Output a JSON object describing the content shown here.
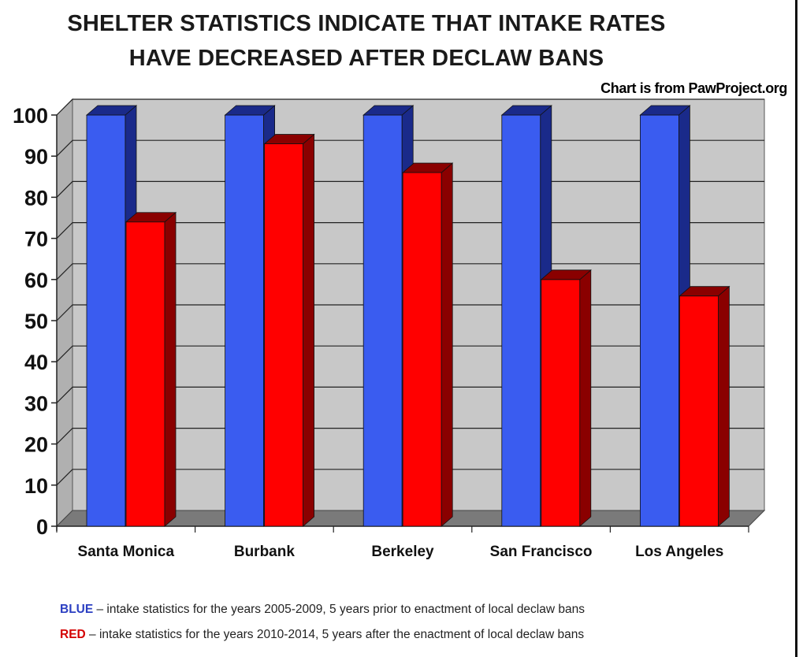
{
  "title_line1": "SHELTER STATISTICS INDICATE THAT INTAKE RATES",
  "title_line2": "HAVE DECREASED AFTER DECLAW BANS",
  "credit": "Chart is from PawProject.org",
  "legend": {
    "blue_key": "BLUE",
    "blue_text": " – intake statistics for the years 2005-2009, 5 years prior to enactment of local declaw bans",
    "red_key": "RED",
    "red_text": " – intake statistics for the years 2010-2014, 5 years after the enactment of local declaw bans"
  },
  "colors": {
    "blue": "#3a5cf0",
    "blue_dark": "#1a2a8a",
    "red": "#ff0000",
    "red_dark": "#8a0000",
    "wall": "#c8c8c8",
    "floor": "#7a7a7a"
  },
  "chart_data": {
    "type": "bar",
    "categories": [
      "Santa Monica",
      "Burbank",
      "Berkeley",
      "San Francisco",
      "Los Angeles"
    ],
    "series": [
      {
        "values": [
          100,
          100,
          100,
          100,
          100
        ]
      },
      {
        "values": [
          74,
          93,
          86,
          60,
          56
        ]
      }
    ],
    "yticks": [
      "0",
      "10",
      "20",
      "30",
      "40",
      "50",
      "60",
      "70",
      "80",
      "90",
      "100"
    ],
    "ylim": [
      0,
      100
    ],
    "grid": true
  }
}
